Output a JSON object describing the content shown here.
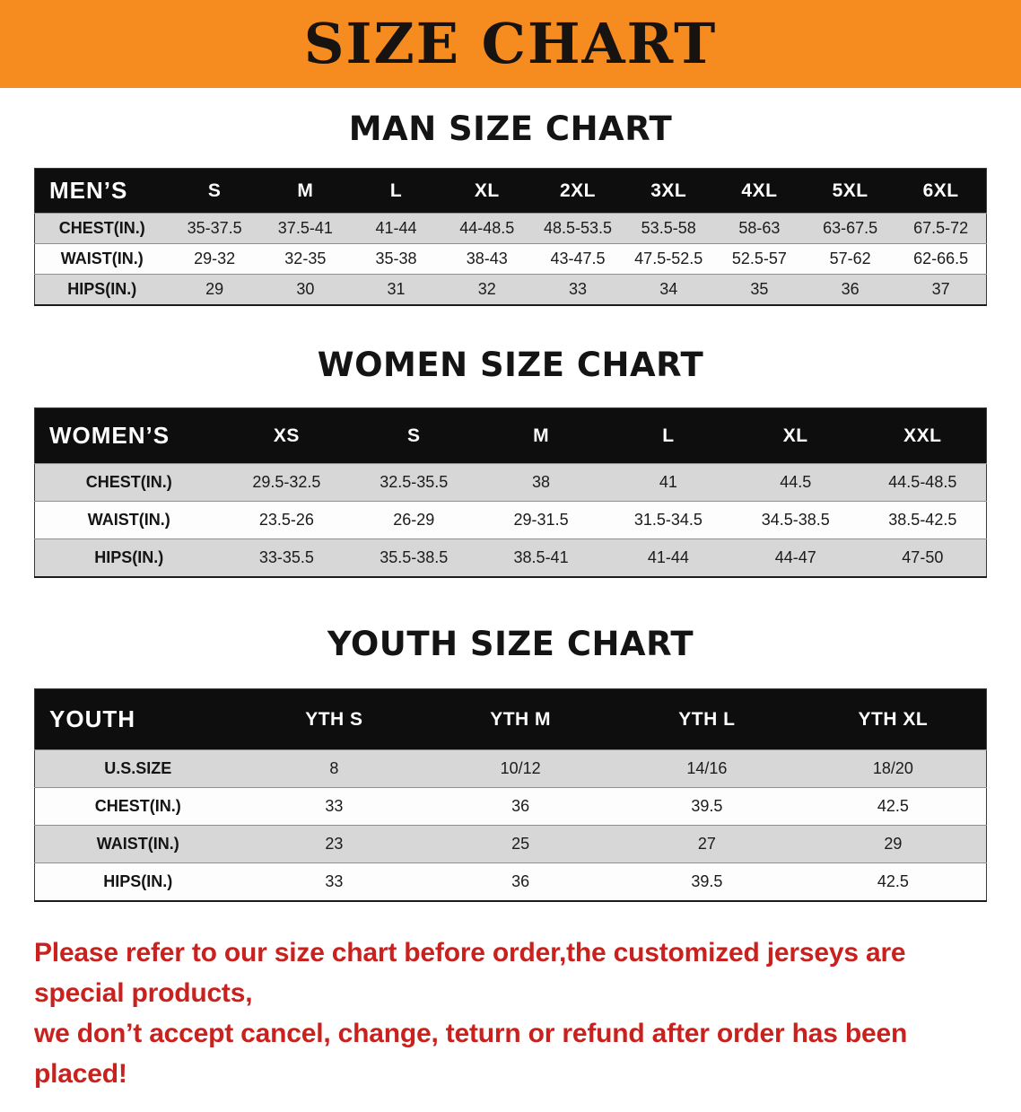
{
  "banner": {
    "title": "SIZE CHART",
    "background_color": "#f68b1f",
    "text_color": "#171310"
  },
  "sections": [
    {
      "title": "MAN SIZE CHART",
      "table": {
        "corner_label": "MEN’S",
        "columns": [
          "S",
          "M",
          "L",
          "XL",
          "2XL",
          "3XL",
          "4XL",
          "5XL",
          "6XL"
        ],
        "rows": [
          {
            "label": "CHEST(IN.)",
            "values": [
              "35-37.5",
              "37.5-41",
              "41-44",
              "44-48.5",
              "48.5-53.5",
              "53.5-58",
              "58-63",
              "63-67.5",
              "67.5-72"
            ]
          },
          {
            "label": "WAIST(IN.)",
            "values": [
              "29-32",
              "32-35",
              "35-38",
              "38-43",
              "43-47.5",
              "47.5-52.5",
              "52.5-57",
              "57-62",
              "62-66.5"
            ]
          },
          {
            "label": "HIPS(IN.)",
            "values": [
              "29",
              "30",
              "31",
              "32",
              "33",
              "34",
              "35",
              "36",
              "37"
            ]
          }
        ]
      }
    },
    {
      "title": "WOMEN SIZE CHART",
      "table": {
        "corner_label": "WOMEN’S",
        "columns": [
          "XS",
          "S",
          "M",
          "L",
          "XL",
          "XXL"
        ],
        "rows": [
          {
            "label": "CHEST(IN.)",
            "values": [
              "29.5-32.5",
              "32.5-35.5",
              "38",
              "41",
              "44.5",
              "44.5-48.5"
            ]
          },
          {
            "label": "WAIST(IN.)",
            "values": [
              "23.5-26",
              "26-29",
              "29-31.5",
              "31.5-34.5",
              "34.5-38.5",
              "38.5-42.5"
            ]
          },
          {
            "label": "HIPS(IN.)",
            "values": [
              "33-35.5",
              "35.5-38.5",
              "38.5-41",
              "41-44",
              "44-47",
              "47-50"
            ]
          }
        ]
      }
    },
    {
      "title": "YOUTH SIZE CHART",
      "table": {
        "corner_label": "YOUTH",
        "columns": [
          "YTH S",
          "YTH M",
          "YTH L",
          "YTH XL"
        ],
        "rows": [
          {
            "label": "U.S.SIZE",
            "values": [
              "8",
              "10/12",
              "14/16",
              "18/20"
            ]
          },
          {
            "label": "CHEST(IN.)",
            "values": [
              "33",
              "36",
              "39.5",
              "42.5"
            ]
          },
          {
            "label": "WAIST(IN.)",
            "values": [
              "23",
              "25",
              "27",
              "29"
            ]
          },
          {
            "label": "HIPS(IN.)",
            "values": [
              "33",
              "36",
              "39.5",
              "42.5"
            ]
          }
        ]
      }
    }
  ],
  "footer": {
    "text_color": "#c9211e",
    "lines": [
      "Please refer to our size chart before order,the customized jerseys are special products,",
      "we don’t accept cancel, change, teturn or refund after order has been placed!"
    ]
  }
}
